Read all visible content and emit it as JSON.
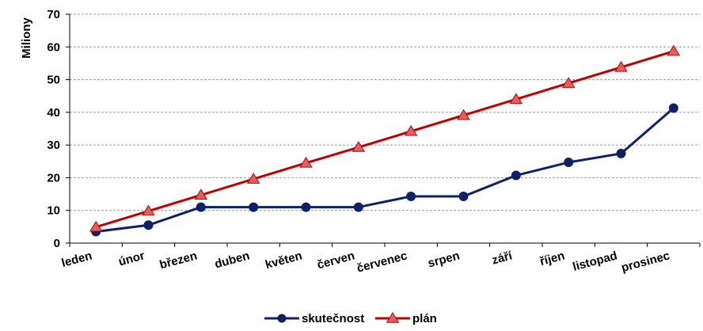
{
  "chart_data": {
    "type": "line",
    "title": "",
    "xlabel": "",
    "ylabel": "Miliony",
    "ylim": [
      0,
      70
    ],
    "yticks": [
      0,
      10,
      20,
      30,
      40,
      50,
      60,
      70
    ],
    "grid": true,
    "legend_position": "bottom",
    "categories": [
      "leden",
      "únor",
      "březen",
      "duben",
      "květen",
      "červen",
      "červenec",
      "srpen",
      "září",
      "říjen",
      "listopad",
      "prosinec"
    ],
    "series": [
      {
        "name": "skutečnost",
        "color": "#0d2266",
        "marker": "circle",
        "values": [
          3.5,
          5.5,
          11,
          11,
          11,
          11,
          14.3,
          14.3,
          20.7,
          24.7,
          27.4,
          41.3
        ]
      },
      {
        "name": "plán",
        "color": "#c00000",
        "marker_fill": "#e06060",
        "marker": "triangle",
        "values": [
          4.9,
          9.8,
          14.7,
          19.6,
          24.5,
          29.3,
          34.2,
          39.1,
          44.0,
          48.9,
          53.8,
          58.7
        ]
      }
    ]
  }
}
